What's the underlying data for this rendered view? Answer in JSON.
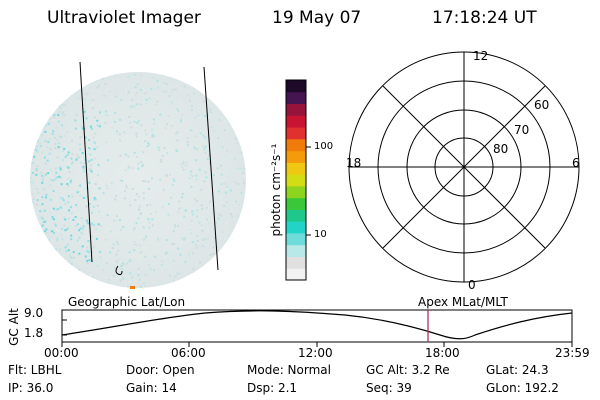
{
  "header": {
    "title": "Ultraviolet Imager",
    "date": "19 May 07",
    "time": "17:18:24 UT"
  },
  "colorbar": {
    "label": "photon cm⁻²s⁻¹",
    "ticks": [
      {
        "label": "100",
        "value": 100
      },
      {
        "label": "10",
        "value": 10
      }
    ],
    "colors": [
      "#f2f2f2",
      "#e0e0e0",
      "#b8e8e8",
      "#6fdbdb",
      "#22d3c8",
      "#1ec88a",
      "#3ac83a",
      "#8cd41e",
      "#d4dc14",
      "#f0c814",
      "#f59a0a",
      "#f07a0a",
      "#e03030",
      "#c81432",
      "#96143c",
      "#461450",
      "#1e0a28"
    ]
  },
  "polar_plot": {
    "hour_labels": [
      "12",
      "18",
      "6",
      "0"
    ],
    "lat_labels": [
      "60",
      "70",
      "80"
    ]
  },
  "timeline": {
    "left_label": "Geographic Lat/Lon",
    "right_label": "Apex MLat/MLT",
    "axis_label": "GC Alt",
    "y_ticks": [
      "9.0",
      "1.8"
    ],
    "x_ticks": [
      "00:00",
      "06:00",
      "12:00",
      "18:00",
      "23:59"
    ],
    "marker_time": "17:18:24",
    "marker_color": "#b03060",
    "curve_color": "#000000"
  },
  "info": {
    "flt": "Flt: LBHL",
    "ip": "IP: 36.0",
    "door": "Door: Open",
    "gain": "Gain: 14",
    "mode": "Mode: Normal",
    "dsp": "Dsp:     2.1",
    "gc_alt": "GC Alt: 3.2 Re",
    "seq": "Seq: 39",
    "glat": "GLat:   24.3",
    "glon": "GLon: 192.2"
  }
}
